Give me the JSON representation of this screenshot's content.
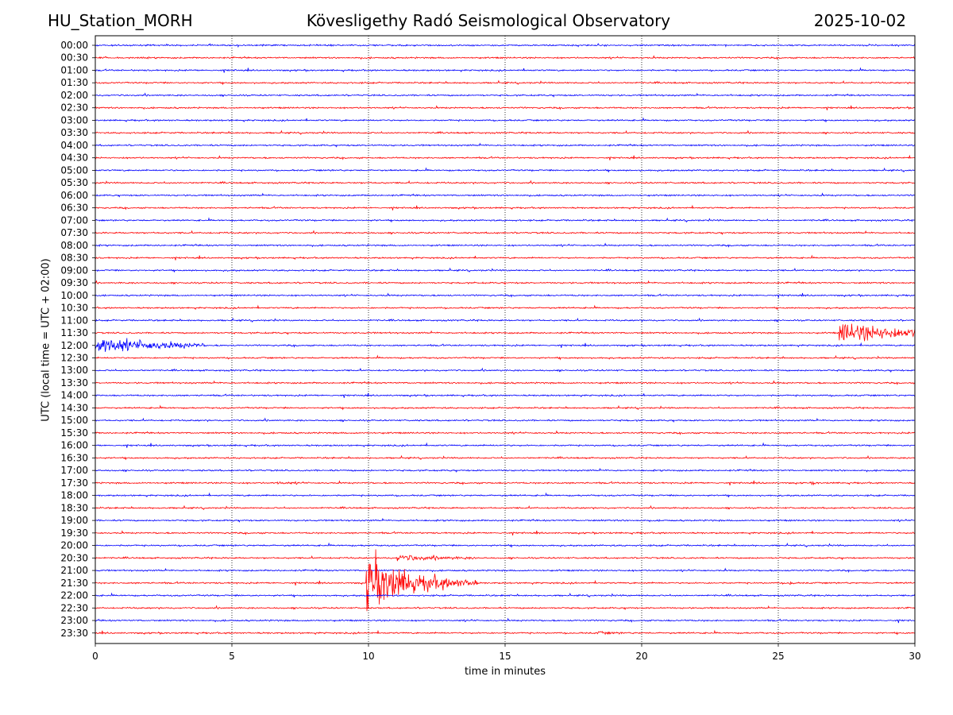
{
  "header": {
    "station": "HU_Station_MORH",
    "title": "Kövesligethy Radó Seismological Observatory",
    "date": "2025-10-02"
  },
  "chart_data": {
    "type": "line",
    "title": "Kövesligethy Radó Seismological Observatory",
    "xlabel": "time in minutes",
    "ylabel": "UTC (local time = UTC + 02:00)",
    "xlim": [
      0,
      30
    ],
    "x_ticks": [
      0,
      5,
      10,
      15,
      20,
      25,
      30
    ],
    "grid": "vertical dotted at each x tick",
    "row_labels": [
      "00:00",
      "00:30",
      "01:00",
      "01:30",
      "02:00",
      "02:30",
      "03:00",
      "03:30",
      "04:00",
      "04:30",
      "05:00",
      "05:30",
      "06:00",
      "06:30",
      "07:00",
      "07:30",
      "08:00",
      "08:30",
      "09:00",
      "09:30",
      "10:00",
      "10:30",
      "11:00",
      "11:30",
      "12:00",
      "12:30",
      "13:00",
      "13:30",
      "14:00",
      "14:30",
      "15:00",
      "15:30",
      "16:00",
      "16:30",
      "17:00",
      "17:30",
      "18:00",
      "18:30",
      "19:00",
      "19:30",
      "20:00",
      "20:30",
      "21:00",
      "21:30",
      "22:00",
      "22:30",
      "23:00",
      "23:30"
    ],
    "colors": {
      "even_rows": "#0000ff",
      "odd_rows": "#ff0000"
    },
    "events": [
      {
        "row": "11:30",
        "start_min": 27.2,
        "end_min": 30,
        "amplitude": 18,
        "duration_min": 2.8
      },
      {
        "row": "12:00",
        "start_min": 0,
        "end_min": 4.0,
        "amplitude": 16,
        "duration_min": 2.2
      },
      {
        "row": "21:30",
        "start_min": 9.9,
        "end_min": 14.0,
        "amplitude": 55,
        "duration_min": 1.6
      },
      {
        "row": "20:30",
        "start_min": 11.0,
        "end_min": 14.0,
        "amplitude": 5,
        "duration_min": 1.5
      },
      {
        "row": "21:30",
        "start_min": 25.4,
        "end_min": 25.6,
        "amplitude": 8,
        "duration_min": 0.1
      },
      {
        "row": "17:30",
        "start_min": 6.6,
        "end_min": 7.6,
        "amplitude": 2,
        "duration_min": 0.5
      },
      {
        "row": "17:30",
        "start_min": 26.2,
        "end_min": 26.5,
        "amplitude": 3,
        "duration_min": 0.15
      },
      {
        "row": "23:30",
        "start_min": 18.3,
        "end_min": 19.5,
        "amplitude": 2,
        "duration_min": 0.6
      }
    ]
  }
}
